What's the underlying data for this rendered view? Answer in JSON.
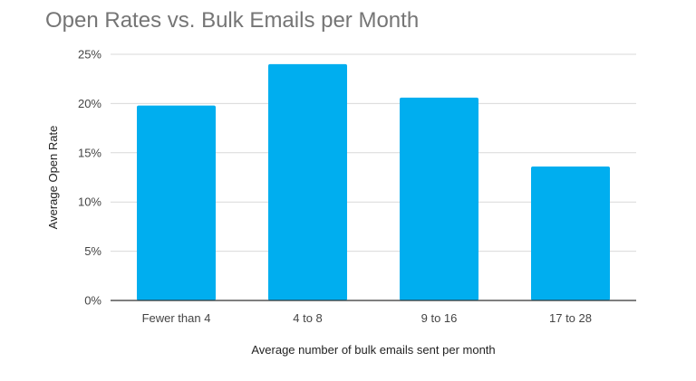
{
  "chart_data": {
    "type": "bar",
    "title": "Open Rates vs. Bulk Emails per Month",
    "xlabel": "Average number of bulk emails sent per month",
    "ylabel": "Average Open Rate",
    "categories": [
      "Fewer than 4",
      "4 to 8",
      "9 to 16",
      "17 to 28"
    ],
    "values": [
      19.8,
      24.0,
      20.6,
      13.6
    ],
    "ylim": [
      0,
      25
    ],
    "yticks": [
      0,
      5,
      10,
      15,
      20,
      25
    ],
    "ytick_labels": [
      "0%",
      "5%",
      "10%",
      "15%",
      "20%",
      "25%"
    ],
    "bar_color": "#00aeef",
    "grid": true,
    "legend": "none"
  }
}
